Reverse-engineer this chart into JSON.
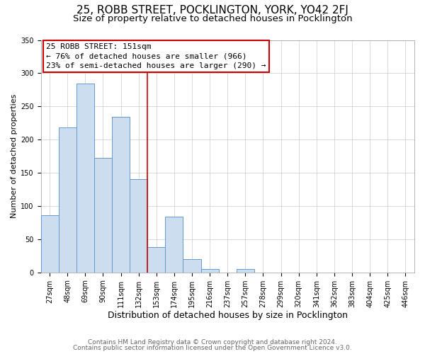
{
  "title": "25, ROBB STREET, POCKLINGTON, YORK, YO42 2FJ",
  "subtitle": "Size of property relative to detached houses in Pocklington",
  "xlabel": "Distribution of detached houses by size in Pocklington",
  "ylabel": "Number of detached properties",
  "categories": [
    "27sqm",
    "48sqm",
    "69sqm",
    "90sqm",
    "111sqm",
    "132sqm",
    "153sqm",
    "174sqm",
    "195sqm",
    "216sqm",
    "237sqm",
    "257sqm",
    "278sqm",
    "299sqm",
    "320sqm",
    "341sqm",
    "362sqm",
    "383sqm",
    "404sqm",
    "425sqm",
    "446sqm"
  ],
  "values": [
    86,
    218,
    284,
    172,
    234,
    140,
    38,
    84,
    20,
    5,
    0,
    5,
    0,
    0,
    0,
    0,
    0,
    0,
    0,
    0,
    0
  ],
  "bar_color": "#ccddf0",
  "bar_edge_color": "#6699cc",
  "vline_color": "#cc0000",
  "vline_bin_index": 6,
  "annotation_line1": "25 ROBB STREET: 151sqm",
  "annotation_line2": "← 76% of detached houses are smaller (966)",
  "annotation_line3": "23% of semi-detached houses are larger (290) →",
  "annotation_box_edge_color": "#cc0000",
  "footnote1": "Contains HM Land Registry data © Crown copyright and database right 2024.",
  "footnote2": "Contains public sector information licensed under the Open Government Licence v3.0.",
  "title_fontsize": 11,
  "subtitle_fontsize": 9.5,
  "ylabel_fontsize": 8,
  "xlabel_fontsize": 9,
  "tick_fontsize": 7,
  "annotation_fontsize": 8,
  "footnote_fontsize": 6.5,
  "ylim": [
    0,
    350
  ],
  "yticks": [
    0,
    50,
    100,
    150,
    200,
    250,
    300,
    350
  ],
  "background_color": "#ffffff",
  "grid_color": "#cccccc"
}
